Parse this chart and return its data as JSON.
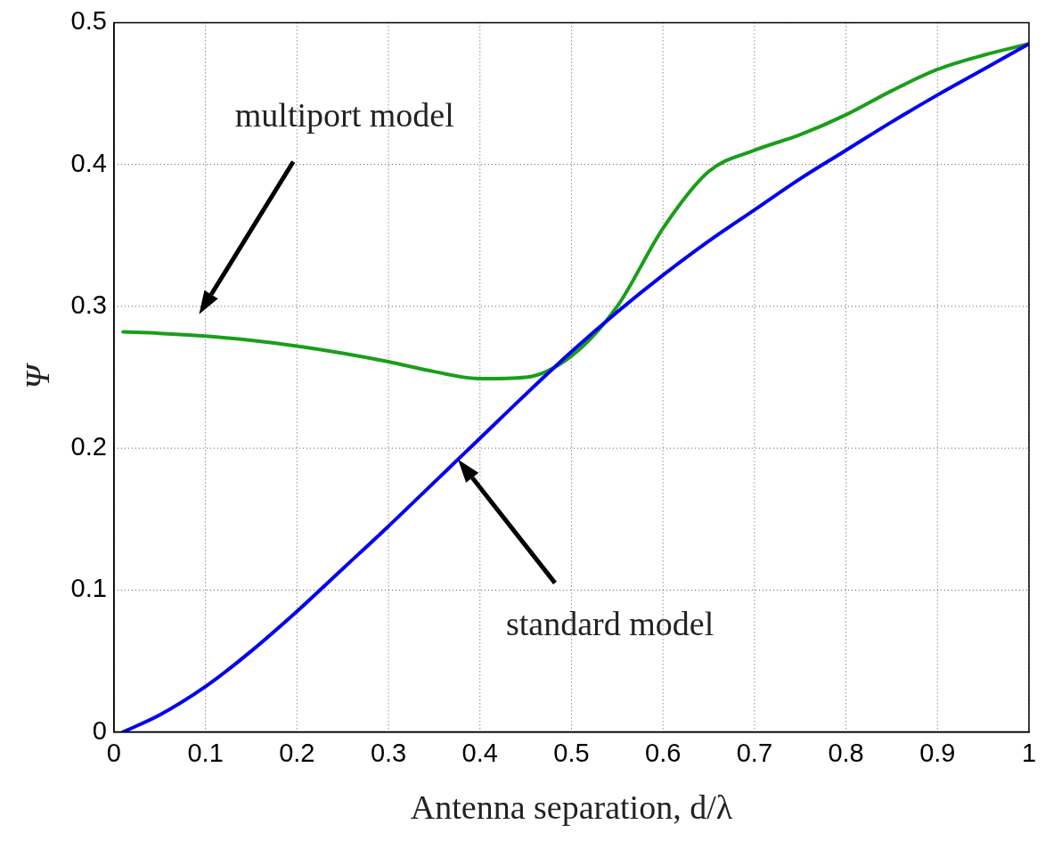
{
  "chart_data": {
    "type": "line",
    "xlabel": "Antenna separation, d/λ",
    "ylabel": "Ψ",
    "xlim": [
      0,
      1
    ],
    "xticks": [
      0,
      0.1,
      0.2,
      0.3,
      0.4,
      0.5,
      0.6,
      0.7,
      0.8,
      0.9,
      1
    ],
    "ylim": [
      0,
      0.5
    ],
    "yticks": [
      0,
      0.1,
      0.2,
      0.3,
      0.4,
      0.5
    ],
    "grid": true,
    "legend": false,
    "marker": "none",
    "line_style": "solid",
    "series": [
      {
        "color": "#0000ee",
        "x": [
          0.01,
          0.05,
          0.1,
          0.15,
          0.2,
          0.25,
          0.3,
          0.35,
          0.4,
          0.45,
          0.5,
          0.55,
          0.6,
          0.65,
          0.7,
          0.75,
          0.8,
          0.85,
          0.9,
          0.95,
          1
        ],
        "values": [
          0,
          0.012,
          0.032,
          0.057,
          0.085,
          0.115,
          0.145,
          0.176,
          0.207,
          0.238,
          0.268,
          0.296,
          0.322,
          0.346,
          0.368,
          0.39,
          0.41,
          0.43,
          0.449,
          0.467,
          0.485
        ]
      },
      {
        "color": "#1a9e1a",
        "x": [
          0.01,
          0.05,
          0.1,
          0.15,
          0.2,
          0.25,
          0.3,
          0.35,
          0.4,
          0.45,
          0.5,
          0.55,
          0.6,
          0.65,
          0.7,
          0.75,
          0.8,
          0.85,
          0.9,
          0.95,
          1
        ],
        "values": [
          0.282,
          0.281,
          0.279,
          0.276,
          0.272,
          0.267,
          0.261,
          0.254,
          0.249,
          0.25,
          0.265,
          0.3,
          0.355,
          0.395,
          0.41,
          0.421,
          0.435,
          0.452,
          0.467,
          0.477,
          0.485
        ]
      }
    ],
    "annotations": [
      "multiport model",
      "standard model"
    ]
  }
}
